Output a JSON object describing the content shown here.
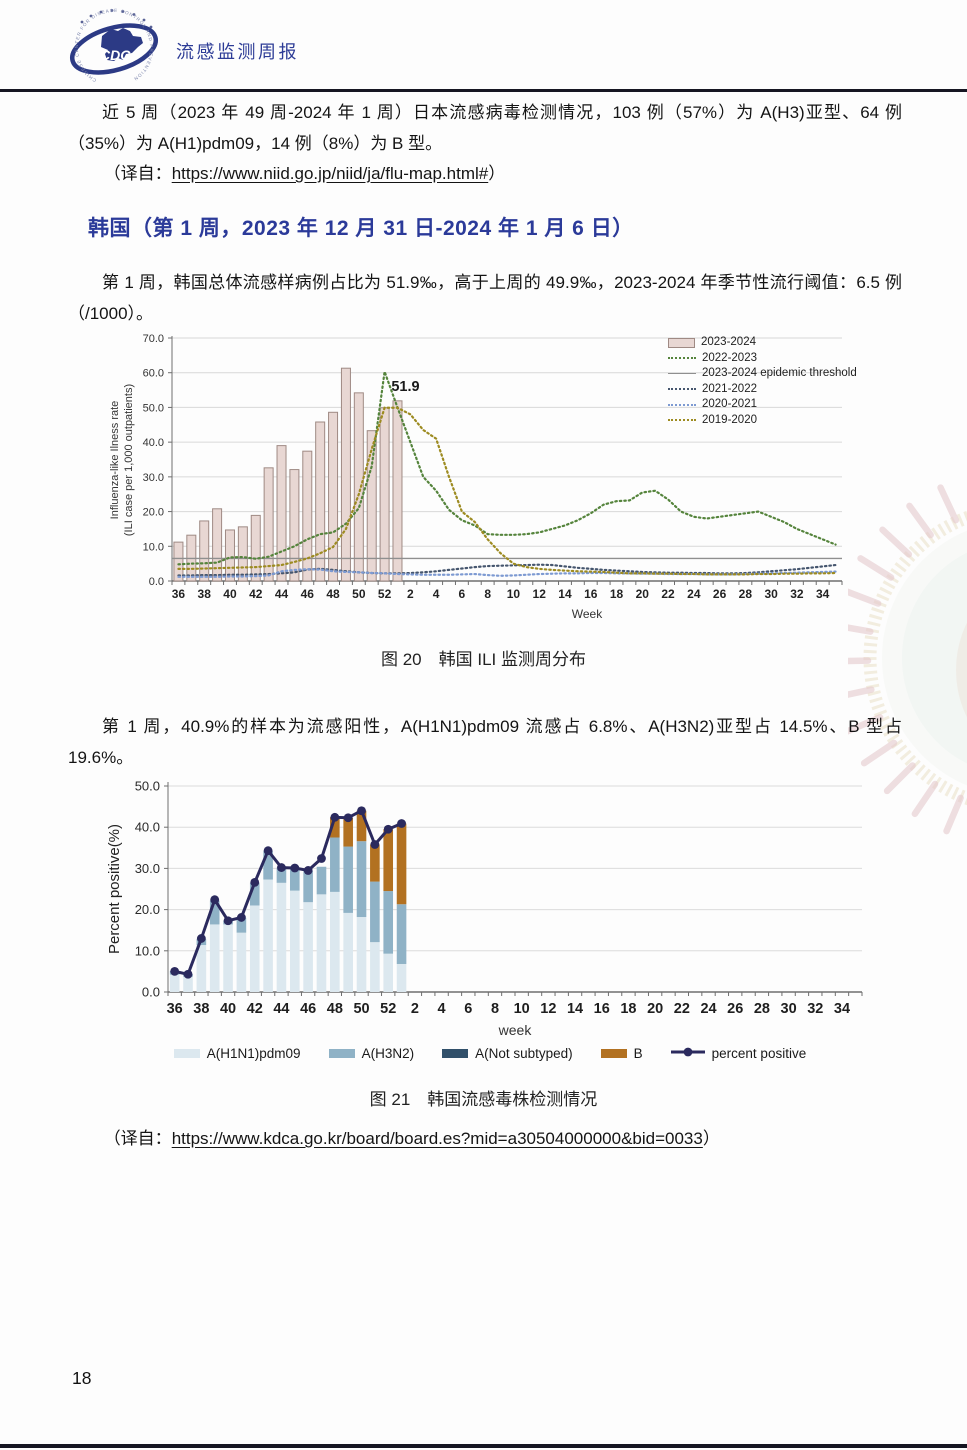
{
  "header": {
    "title": "流感监测周报",
    "logo_label": "CDC",
    "logo_ring": "CHINESE CENTER FOR DISEASE CONTROL AND PREVENTION"
  },
  "intro": {
    "text": "近 5 周（2023 年 49 周-2024 年 1 周）日本流感病毒检测情况，103 例（57%）为 A(H3)亚型、64 例（35%）为 A(H1)pdm09，14 例（8%）为 B 型。",
    "source_prefix": "（译自：",
    "source_url": "https://www.niid.go.jp/niid/ja/flu-map.html#",
    "source_suffix": "）"
  },
  "korea_section": {
    "heading": "韩国（第 1 周，2023 年 12 月 31 日-2024 年 1 月 6 日）",
    "para1": "第 1 周，韩国总体流感样病例占比为 51.9‰，高于上周的 49.9‰，2023-2024 年季节性流行阈值：6.5 例（/1000）。",
    "fig20_caption": "图 20　韩国 ILI 监测周分布",
    "para2": "第 1 周，40.9%的样本为流感阳性，A(H1N1)pdm09 流感占 6.8%、A(H3N2)亚型占 14.5%、B 型占 19.6%。",
    "fig21_caption": "图 21　韩国流感毒株检测情况",
    "source_prefix": "（译自：",
    "source_url": "https://www.kdca.go.kr/board/board.es?mid=a30504000000&bid=0033",
    "source_suffix": "）"
  },
  "page_number": "18",
  "chart_data": [
    {
      "type": "bar",
      "title": "",
      "ylabel_line1": "Influenza-like Ilness rate",
      "ylabel_line2": "(ILI case per 1,000 outpatients)",
      "xlabel": "Week",
      "ylim": [
        0,
        70
      ],
      "ytick_step": 10,
      "total_slots": 52,
      "xtick_labels": [
        "36",
        "38",
        "40",
        "42",
        "44",
        "46",
        "48",
        "50",
        "52",
        "2",
        "4",
        "6",
        "8",
        "10",
        "12",
        "14",
        "16",
        "18",
        "20",
        "22",
        "24",
        "26",
        "28",
        "30",
        "32",
        "34"
      ],
      "bar_series": {
        "name": "2023-2024",
        "fill": "#e8d7d3",
        "border": "#9f8a84",
        "categories": [
          "36",
          "37",
          "38",
          "39",
          "40",
          "41",
          "42",
          "43",
          "44",
          "45",
          "46",
          "47",
          "48",
          "49",
          "50",
          "51",
          "52",
          "1"
        ],
        "values": [
          11.2,
          13.2,
          17.3,
          20.8,
          14.7,
          15.6,
          18.9,
          32.6,
          39.0,
          32.1,
          37.4,
          45.8,
          48.6,
          61.3,
          54.2,
          43.3,
          49.9,
          51.9
        ],
        "annotation": {
          "label": "51.9",
          "index": 17
        }
      },
      "threshold": {
        "name": "2023-2024 epidemic threshold",
        "value": 6.5,
        "color": "#8f8f8f"
      },
      "line_series": [
        {
          "name": "2022-2023",
          "color": "#55843c",
          "values": [
            4.8,
            5.0,
            5.1,
            5.3,
            6.8,
            6.9,
            6.4,
            7.0,
            8.5,
            10.0,
            12.0,
            13.5,
            14.0,
            16.5,
            21.0,
            33.0,
            60.3,
            50.0,
            40.0,
            30.0,
            26.0,
            20.5,
            17.5,
            16.0,
            13.5,
            13.3,
            13.3,
            13.5,
            14.0,
            15.0,
            16.0,
            17.5,
            19.5,
            22.0,
            23.0,
            23.2,
            25.5,
            26.0,
            23.5,
            20.0,
            18.5,
            18.0,
            18.5,
            19.0,
            19.5,
            20.0,
            18.5,
            17.0,
            15.0,
            13.5,
            12.0,
            10.5
          ]
        },
        {
          "name": "2021-2022",
          "color": "#46566e",
          "values": [
            1.6,
            1.6,
            1.7,
            1.7,
            1.8,
            1.8,
            1.9,
            2.0,
            2.2,
            2.5,
            3.3,
            3.5,
            3.2,
            2.8,
            2.5,
            2.3,
            2.2,
            2.2,
            2.3,
            2.5,
            2.8,
            3.2,
            3.6,
            4.0,
            4.3,
            4.4,
            4.5,
            4.6,
            4.7,
            4.6,
            4.2,
            3.8,
            3.5,
            3.2,
            3.0,
            2.8,
            2.6,
            2.5,
            2.4,
            2.4,
            2.3,
            2.3,
            2.2,
            2.2,
            2.3,
            2.5,
            2.8,
            3.1,
            3.4,
            3.8,
            4.2,
            4.6
          ]
        },
        {
          "name": "2020-2021",
          "color": "#7d9ad2",
          "values": [
            1.2,
            1.2,
            1.2,
            1.2,
            1.3,
            1.3,
            1.4,
            1.6,
            2.8,
            3.2,
            3.4,
            3.3,
            2.8,
            2.6,
            2.5,
            2.3,
            2.2,
            2.0,
            1.9,
            1.8,
            1.8,
            1.8,
            1.9,
            2.0,
            1.7,
            1.5,
            1.6,
            1.8,
            2.0,
            2.1,
            2.2,
            2.2,
            2.3,
            2.3,
            2.2,
            2.2,
            2.1,
            2.1,
            2.0,
            2.0,
            2.0,
            1.9,
            1.9,
            1.9,
            2.0,
            2.1,
            2.2,
            2.3,
            2.4,
            2.5,
            2.6,
            2.7
          ]
        },
        {
          "name": "2019-2020",
          "color": "#9d8b21",
          "values": [
            3.5,
            3.5,
            3.6,
            3.7,
            3.8,
            3.9,
            4.0,
            4.3,
            4.6,
            5.5,
            6.5,
            8.0,
            9.8,
            15.0,
            25.0,
            38.0,
            49.9,
            49.9,
            48.0,
            43.5,
            41.0,
            30.0,
            20.0,
            17.0,
            12.0,
            8.0,
            5.0,
            4.0,
            3.5,
            3.2,
            3.0,
            2.8,
            2.7,
            2.6,
            2.4,
            2.2,
            2.2,
            2.1,
            2.1,
            2.0,
            2.0,
            1.9,
            1.9,
            1.9,
            1.9,
            2.0,
            2.0,
            2.1,
            2.1,
            2.2,
            2.2,
            2.3
          ]
        }
      ],
      "legend": [
        {
          "label": "2023-2024",
          "swatch": "bar"
        },
        {
          "label": "2022-2023",
          "swatch": "dotted",
          "color": "#55843c"
        },
        {
          "label": "2023-2024 epidemic threshold",
          "swatch": "solid",
          "color": "#8f8f8f"
        },
        {
          "label": "2021-2022",
          "swatch": "dotted",
          "color": "#46566e"
        },
        {
          "label": "2020-2021",
          "swatch": "dotted",
          "color": "#7d9ad2"
        },
        {
          "label": "2019-2020",
          "swatch": "dotted",
          "color": "#9d8b21"
        }
      ]
    },
    {
      "type": "stacked-bar-line",
      "ylabel": "Percent positive(%)",
      "xlabel": "week",
      "ylim": [
        0,
        50
      ],
      "ytick_step": 10,
      "total_slots": 52,
      "xtick_labels": [
        "36",
        "38",
        "40",
        "42",
        "44",
        "46",
        "48",
        "50",
        "52",
        "2",
        "4",
        "6",
        "8",
        "10",
        "12",
        "14",
        "16",
        "18",
        "20",
        "22",
        "24",
        "26",
        "28",
        "30",
        "32",
        "34"
      ],
      "categories": [
        "36",
        "37",
        "38",
        "39",
        "40",
        "41",
        "42",
        "43",
        "44",
        "45",
        "46",
        "47",
        "48",
        "49",
        "50",
        "51",
        "52",
        "1"
      ],
      "series": [
        {
          "name": "A(H1N1)pdm09",
          "color": "#dce8ef",
          "values": [
            4.2,
            3.7,
            11.4,
            16.4,
            16.4,
            14.4,
            21.0,
            27.3,
            26.5,
            24.6,
            21.8,
            23.7,
            24.3,
            19.2,
            18.2,
            12.1,
            9.3,
            6.8
          ]
        },
        {
          "name": "A(H3N2)",
          "color": "#8fb2c6",
          "values": [
            0.9,
            0.6,
            1.5,
            5.8,
            0.9,
            3.6,
            5.5,
            6.9,
            3.7,
            5.4,
            7.6,
            6.7,
            13.2,
            16.1,
            18.4,
            14.7,
            15.2,
            14.5
          ]
        },
        {
          "name": "A(Not subtyped)",
          "color": "#31506a",
          "values": [
            0,
            0,
            0,
            0,
            0,
            0,
            0,
            0,
            0,
            0,
            0,
            0,
            0,
            0,
            0,
            0,
            0,
            0
          ]
        },
        {
          "name": "B",
          "color": "#b27121",
          "values": [
            0,
            0,
            0,
            0,
            0,
            0,
            0,
            0,
            0,
            0,
            0,
            0,
            4.9,
            7.0,
            7.4,
            9.0,
            15.0,
            19.6
          ]
        }
      ],
      "line": {
        "name": "percent positive",
        "color": "#2b2a5e",
        "values": [
          5.0,
          4.3,
          13.0,
          22.4,
          17.3,
          18.1,
          26.6,
          34.3,
          30.2,
          30.1,
          29.5,
          32.4,
          42.4,
          42.3,
          44.0,
          35.8,
          39.5,
          40.9
        ]
      }
    }
  ]
}
